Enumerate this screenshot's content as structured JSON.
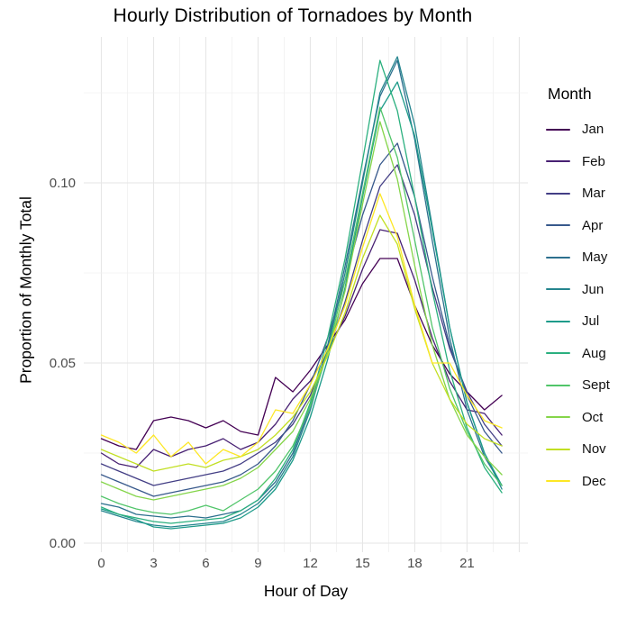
{
  "chart_data": {
    "type": "line",
    "title": "Hourly Distribution of Tornadoes by Month",
    "xlabel": "Hour of Day",
    "ylabel": "Proportion of Monthly Total",
    "legend_title": "Month",
    "legend_position": "right",
    "grid": true,
    "x": [
      0,
      1,
      2,
      3,
      4,
      5,
      6,
      7,
      8,
      9,
      10,
      11,
      12,
      13,
      14,
      15,
      16,
      17,
      18,
      19,
      20,
      21,
      22,
      23
    ],
    "x_ticks": [
      0,
      3,
      6,
      9,
      12,
      15,
      18,
      21
    ],
    "y_ticks": [
      {
        "v": 0.0,
        "label": "0.00"
      },
      {
        "v": 0.05,
        "label": "0.05"
      },
      {
        "v": 0.1,
        "label": "0.10"
      }
    ],
    "xlim": [
      -1,
      24.5
    ],
    "ylim": [
      -0.0025,
      0.1405
    ],
    "grid_minor_x_step": 1.5,
    "grid_minor_y_step": 0.025,
    "colors": {
      "grid_major": "#e6e6e6",
      "grid_minor": "#f0f0f0",
      "tick_label": "#4d4d4d",
      "text": "#000000",
      "background": "#ffffff"
    },
    "series": [
      {
        "name": "Jan",
        "color": "#440154",
        "values": [
          0.029,
          0.027,
          0.026,
          0.034,
          0.035,
          0.034,
          0.032,
          0.034,
          0.031,
          0.03,
          0.046,
          0.042,
          0.048,
          0.055,
          0.062,
          0.072,
          0.079,
          0.079,
          0.066,
          0.055,
          0.047,
          0.042,
          0.037,
          0.041
        ]
      },
      {
        "name": "Feb",
        "color": "#482173",
        "values": [
          0.025,
          0.022,
          0.021,
          0.026,
          0.024,
          0.026,
          0.027,
          0.029,
          0.026,
          0.028,
          0.033,
          0.04,
          0.045,
          0.053,
          0.063,
          0.076,
          0.087,
          0.086,
          0.073,
          0.057,
          0.045,
          0.037,
          0.036,
          0.03
        ]
      },
      {
        "name": "Mar",
        "color": "#433E85",
        "values": [
          0.022,
          0.02,
          0.018,
          0.016,
          0.017,
          0.018,
          0.019,
          0.02,
          0.022,
          0.025,
          0.028,
          0.033,
          0.041,
          0.053,
          0.067,
          0.084,
          0.099,
          0.105,
          0.091,
          0.071,
          0.054,
          0.042,
          0.033,
          0.027
        ]
      },
      {
        "name": "Apr",
        "color": "#38598C",
        "values": [
          0.019,
          0.017,
          0.015,
          0.013,
          0.014,
          0.015,
          0.016,
          0.017,
          0.019,
          0.022,
          0.027,
          0.034,
          0.044,
          0.057,
          0.073,
          0.091,
          0.105,
          0.111,
          0.096,
          0.074,
          0.055,
          0.041,
          0.031,
          0.025
        ]
      },
      {
        "name": "May",
        "color": "#2D708E",
        "values": [
          0.011,
          0.01,
          0.008,
          0.0075,
          0.007,
          0.0075,
          0.007,
          0.008,
          0.009,
          0.012,
          0.017,
          0.025,
          0.038,
          0.055,
          0.077,
          0.101,
          0.124,
          0.134,
          0.112,
          0.084,
          0.057,
          0.037,
          0.024,
          0.016
        ]
      },
      {
        "name": "Jun",
        "color": "#25858E",
        "values": [
          0.009,
          0.0075,
          0.006,
          0.005,
          0.0045,
          0.005,
          0.0055,
          0.006,
          0.008,
          0.011,
          0.016,
          0.024,
          0.037,
          0.054,
          0.075,
          0.1,
          0.125,
          0.135,
          0.116,
          0.088,
          0.06,
          0.039,
          0.025,
          0.015
        ]
      },
      {
        "name": "Jul",
        "color": "#1E9B8A",
        "values": [
          0.0095,
          0.008,
          0.0065,
          0.0045,
          0.004,
          0.0045,
          0.005,
          0.0055,
          0.007,
          0.01,
          0.015,
          0.023,
          0.035,
          0.051,
          0.071,
          0.096,
          0.12,
          0.128,
          0.113,
          0.087,
          0.06,
          0.039,
          0.025,
          0.016
        ]
      },
      {
        "name": "Aug",
        "color": "#2BB07F",
        "values": [
          0.01,
          0.008,
          0.007,
          0.006,
          0.0055,
          0.006,
          0.0065,
          0.007,
          0.009,
          0.012,
          0.018,
          0.026,
          0.039,
          0.057,
          0.079,
          0.106,
          0.134,
          0.12,
          0.096,
          0.07,
          0.048,
          0.032,
          0.021,
          0.014
        ]
      },
      {
        "name": "Sept",
        "color": "#51C56A",
        "values": [
          0.013,
          0.011,
          0.0095,
          0.0085,
          0.008,
          0.009,
          0.0105,
          0.009,
          0.012,
          0.015,
          0.02,
          0.027,
          0.038,
          0.053,
          0.073,
          0.097,
          0.121,
          0.107,
          0.084,
          0.06,
          0.043,
          0.031,
          0.022,
          0.016
        ]
      },
      {
        "name": "Oct",
        "color": "#85D54A",
        "values": [
          0.017,
          0.015,
          0.013,
          0.012,
          0.013,
          0.014,
          0.015,
          0.016,
          0.018,
          0.021,
          0.026,
          0.031,
          0.04,
          0.053,
          0.07,
          0.094,
          0.117,
          0.101,
          0.077,
          0.055,
          0.04,
          0.03,
          0.024,
          0.019
        ]
      },
      {
        "name": "Nov",
        "color": "#C2DF23",
        "values": [
          0.026,
          0.024,
          0.022,
          0.02,
          0.021,
          0.022,
          0.021,
          0.023,
          0.024,
          0.026,
          0.03,
          0.035,
          0.042,
          0.052,
          0.064,
          0.079,
          0.091,
          0.083,
          0.065,
          0.05,
          0.04,
          0.033,
          0.029,
          0.027
        ]
      },
      {
        "name": "Dec",
        "color": "#FDE725",
        "values": [
          0.03,
          0.028,
          0.025,
          0.03,
          0.024,
          0.028,
          0.022,
          0.026,
          0.024,
          0.028,
          0.037,
          0.036,
          0.044,
          0.054,
          0.066,
          0.082,
          0.097,
          0.085,
          0.066,
          0.05,
          0.05,
          0.041,
          0.034,
          0.032
        ]
      }
    ]
  }
}
